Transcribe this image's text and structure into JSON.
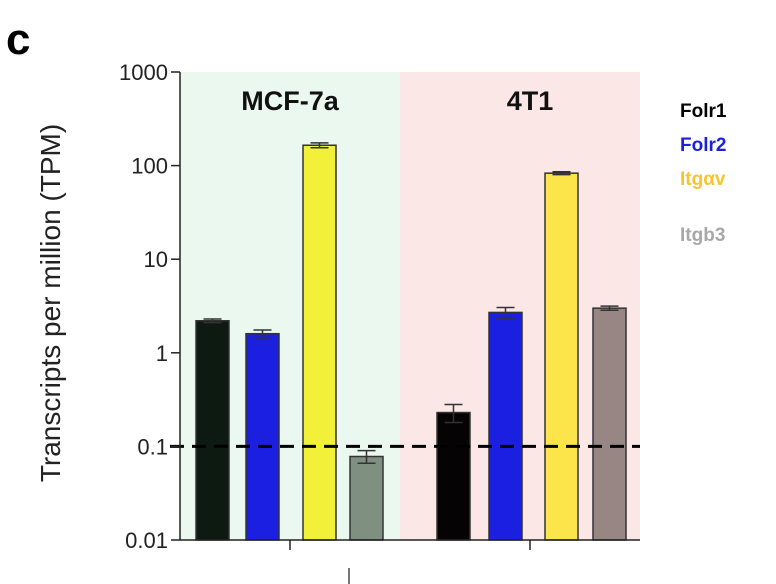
{
  "panel_letter": "c",
  "chart_data": {
    "type": "bar",
    "title": "",
    "xlabel": "",
    "ylabel": "Transcripts per million (TPM)",
    "yscale": "log",
    "ylim": [
      0.01,
      1000
    ],
    "yticks": [
      0.01,
      0.1,
      1,
      10,
      100,
      1000
    ],
    "ytick_labels": [
      "0.01",
      "0.1",
      "1",
      "10",
      "100",
      "1000"
    ],
    "threshold": 0.1,
    "grid": false,
    "legend_position": "right",
    "groups": [
      {
        "name": "MCF-7a",
        "background": "#eaf8f0",
        "bars": [
          {
            "series": "Folr1",
            "value": 2.2,
            "err": 0.1,
            "color": "#0d1a12"
          },
          {
            "series": "Folr2",
            "value": 1.6,
            "err": 0.15,
            "color": "#1a1fe0"
          },
          {
            "series": "Itgav",
            "value": 165,
            "err": 10,
            "color": "#f3f03a"
          },
          {
            "series": "Itgb3",
            "value": 0.078,
            "err": 0.012,
            "color": "#7f8f80"
          }
        ]
      },
      {
        "name": "4T1",
        "background": "#fbe8e6",
        "bars": [
          {
            "series": "Folr1",
            "value": 0.23,
            "err": 0.05,
            "color": "#050303"
          },
          {
            "series": "Folr2",
            "value": 2.7,
            "err": 0.35,
            "color": "#1a1fe0"
          },
          {
            "series": "Itgav",
            "value": 83,
            "err": 3,
            "color": "#fbe54a"
          },
          {
            "series": "Itgb3",
            "value": 3.0,
            "err": 0.15,
            "color": "#978683"
          }
        ]
      }
    ],
    "legend": [
      {
        "name": "Folr1",
        "color": "#000000"
      },
      {
        "name": "Folr2",
        "color": "#1a1fe0"
      },
      {
        "name": "Itgαv",
        "color": "#f7c530"
      },
      {
        "name": "Itgb3",
        "color": "#a8a8a8"
      }
    ]
  }
}
